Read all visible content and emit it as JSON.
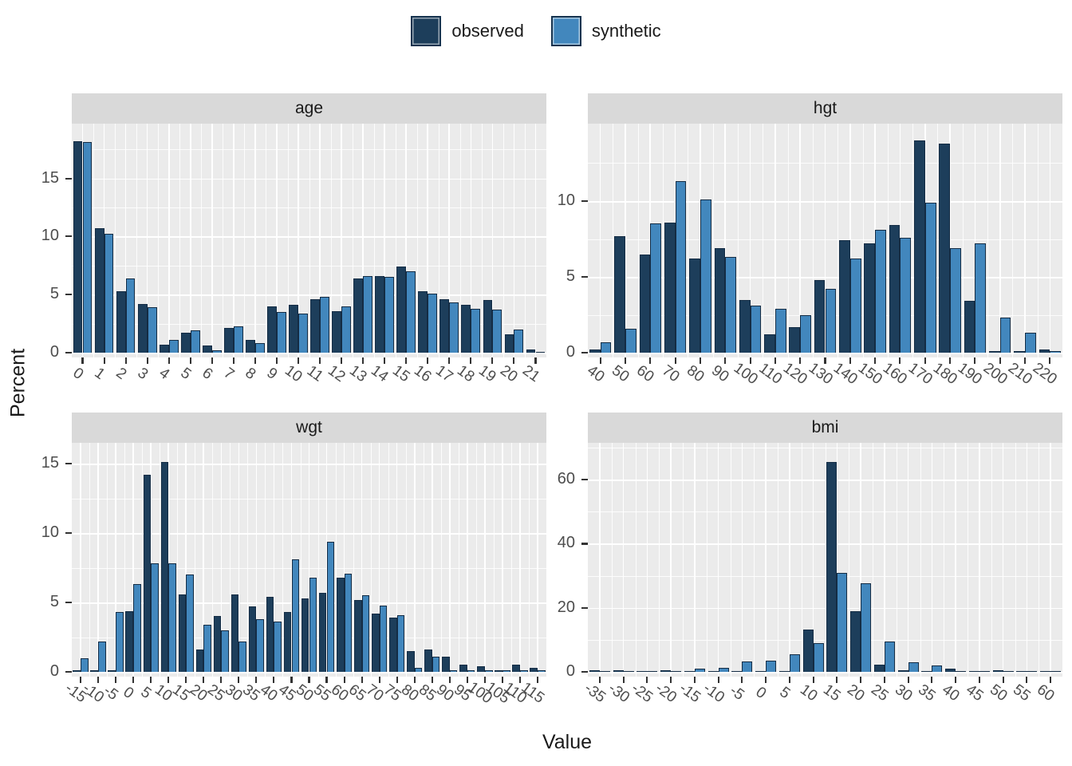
{
  "legend": {
    "items": [
      {
        "label": "observed",
        "color": "#1d3e5b"
      },
      {
        "label": "synthetic",
        "color": "#4287bd"
      }
    ]
  },
  "axis": {
    "x_title": "Value",
    "y_title": "Percent"
  },
  "colors": {
    "observed": "#1d3e5b",
    "synthetic": "#4287bd",
    "bar_stroke": "#142c44",
    "panel_bg": "#ebebeb",
    "strip_bg": "#d9d9d9",
    "grid": "#ffffff",
    "axis_text": "#4d4d4d",
    "title_text": "#1a1a1a"
  },
  "chart_data": [
    {
      "type": "bar",
      "title": "age",
      "categories": [
        "0",
        "1",
        "2",
        "3",
        "4",
        "5",
        "6",
        "7",
        "8",
        "9",
        "10",
        "11",
        "12",
        "13",
        "14",
        "15",
        "16",
        "17",
        "18",
        "19",
        "20",
        "21"
      ],
      "series": [
        {
          "name": "observed",
          "values": [
            18.2,
            10.7,
            5.3,
            4.2,
            0.7,
            1.7,
            0.6,
            2.1,
            1.1,
            4.0,
            4.1,
            4.6,
            3.6,
            6.4,
            6.6,
            7.4,
            5.3,
            4.6,
            4.1,
            4.5,
            1.6,
            0.3
          ]
        },
        {
          "name": "synthetic",
          "values": [
            18.1,
            10.2,
            6.4,
            3.9,
            1.1,
            1.9,
            0.2,
            2.3,
            0.8,
            3.5,
            3.4,
            4.8,
            4.0,
            6.6,
            6.5,
            7.0,
            5.1,
            4.3,
            3.8,
            3.7,
            2.0,
            0.1
          ]
        }
      ],
      "y_ticks": [
        0,
        5,
        10,
        15
      ],
      "ylim": [
        0,
        19.7
      ],
      "xlabel": "Value",
      "ylabel": "Percent",
      "grid": true,
      "legend_position": "top"
    },
    {
      "type": "bar",
      "title": "hgt",
      "categories": [
        "40",
        "50",
        "60",
        "70",
        "80",
        "90",
        "100",
        "110",
        "120",
        "130",
        "140",
        "150",
        "160",
        "170",
        "180",
        "190",
        "200",
        "210",
        "220"
      ],
      "series": [
        {
          "name": "observed",
          "values": [
            0.2,
            7.7,
            6.5,
            8.6,
            6.2,
            6.9,
            3.5,
            1.2,
            1.7,
            4.8,
            7.4,
            7.2,
            8.4,
            14.0,
            13.8,
            3.4,
            0.1,
            0.1,
            0.2
          ]
        },
        {
          "name": "synthetic",
          "values": [
            0.7,
            1.6,
            8.5,
            11.3,
            10.1,
            6.3,
            3.1,
            2.9,
            2.5,
            4.2,
            6.2,
            8.1,
            7.6,
            9.9,
            6.9,
            7.2,
            2.3,
            1.3,
            0.1
          ]
        }
      ],
      "y_ticks": [
        0,
        5,
        10
      ],
      "ylim": [
        0,
        15.1
      ],
      "xlabel": "Value",
      "ylabel": "Percent",
      "grid": true,
      "legend_position": "top"
    },
    {
      "type": "bar",
      "title": "wgt",
      "categories": [
        "-15",
        "-10",
        "-5",
        "0",
        "5",
        "10",
        "15",
        "20",
        "25",
        "30",
        "35",
        "40",
        "45",
        "50",
        "55",
        "60",
        "65",
        "70",
        "75",
        "80",
        "85",
        "90",
        "95",
        "100",
        "105",
        "110",
        "115"
      ],
      "series": [
        {
          "name": "observed",
          "values": [
            0.1,
            0.1,
            0.1,
            4.4,
            14.2,
            15.1,
            5.6,
            1.6,
            4.0,
            5.6,
            4.7,
            5.4,
            4.3,
            5.3,
            5.7,
            6.8,
            5.2,
            4.2,
            3.9,
            1.5,
            1.6,
            1.1,
            0.5,
            0.4,
            0.1,
            0.5,
            0.3
          ]
        },
        {
          "name": "synthetic",
          "values": [
            1.0,
            2.2,
            4.3,
            6.3,
            7.8,
            7.8,
            7.0,
            3.4,
            3.0,
            2.2,
            3.8,
            3.6,
            8.1,
            6.8,
            9.4,
            7.1,
            5.5,
            4.8,
            4.1,
            0.3,
            1.1,
            0.1,
            0.1,
            0.1,
            0.1,
            0.1,
            0.1
          ]
        }
      ],
      "y_ticks": [
        0,
        5,
        10,
        15
      ],
      "ylim": [
        0,
        16.5
      ],
      "xlabel": "Value",
      "ylabel": "Percent",
      "grid": true,
      "legend_position": "top"
    },
    {
      "type": "bar",
      "title": "bmi",
      "categories": [
        "-35",
        "-30",
        "-25",
        "-20",
        "-15",
        "-10",
        "-5",
        "0",
        "5",
        "10",
        "15",
        "20",
        "25",
        "30",
        "35",
        "40",
        "45",
        "50",
        "55",
        "60"
      ],
      "series": [
        {
          "name": "observed",
          "values": [
            0.6,
            0.5,
            0.2,
            0.6,
            0.3,
            0.2,
            0.1,
            0.2,
            0.3,
            13.3,
            65.5,
            19.0,
            2.2,
            0.5,
            0.3,
            1.0,
            0.3,
            0.5,
            0.2,
            0.3
          ]
        },
        {
          "name": "synthetic",
          "values": [
            0.1,
            0.1,
            0.3,
            0.2,
            1.0,
            1.3,
            3.3,
            3.4,
            5.5,
            9.1,
            31.0,
            27.7,
            9.4,
            3.0,
            1.9,
            0.2,
            0.1,
            0.1,
            0.1,
            0.1
          ]
        }
      ],
      "y_ticks": [
        0,
        20,
        40,
        60
      ],
      "ylim": [
        0,
        71.5
      ],
      "xlabel": "Value",
      "ylabel": "Percent",
      "grid": true,
      "legend_position": "top"
    }
  ]
}
